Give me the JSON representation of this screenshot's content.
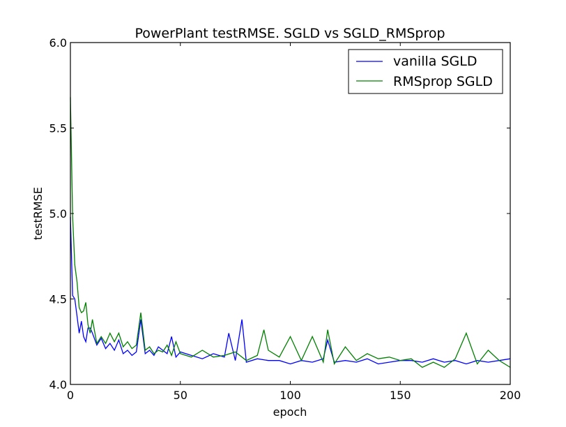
{
  "chart_data": {
    "type": "line",
    "title": "PowerPlant testRMSE. SGLD vs SGLD_RMSprop",
    "xlabel": "epoch",
    "ylabel": "testRMSE",
    "xlim": [
      0,
      200
    ],
    "ylim": [
      4.0,
      6.0
    ],
    "x_ticks": [
      0,
      50,
      100,
      150,
      200
    ],
    "x_tick_labels": [
      "0",
      "50",
      "100",
      "150",
      "200"
    ],
    "y_ticks": [
      4.0,
      4.5,
      5.0,
      5.5,
      6.0
    ],
    "y_tick_labels": [
      "4.0",
      "4.5",
      "5.0",
      "5.5",
      "6.0"
    ],
    "grid": false,
    "legend_position": "top-right",
    "series": [
      {
        "name": "vanilla SGLD",
        "color": "#0000ff",
        "x": [
          0,
          1,
          2,
          3,
          4,
          5,
          6,
          7,
          8,
          9,
          10,
          12,
          14,
          16,
          18,
          20,
          22,
          24,
          26,
          28,
          30,
          32,
          34,
          36,
          38,
          40,
          42,
          44,
          46,
          48,
          50,
          55,
          60,
          65,
          70,
          72,
          75,
          78,
          80,
          85,
          90,
          95,
          100,
          105,
          110,
          115,
          117,
          120,
          125,
          130,
          135,
          140,
          145,
          150,
          155,
          160,
          165,
          170,
          175,
          180,
          185,
          190,
          195,
          200
        ],
        "y": [
          4.98,
          4.52,
          4.5,
          4.4,
          4.3,
          4.37,
          4.28,
          4.25,
          4.33,
          4.33,
          4.3,
          4.23,
          4.27,
          4.21,
          4.24,
          4.2,
          4.26,
          4.18,
          4.2,
          4.17,
          4.19,
          4.38,
          4.18,
          4.2,
          4.17,
          4.22,
          4.2,
          4.18,
          4.28,
          4.16,
          4.19,
          4.17,
          4.15,
          4.18,
          4.16,
          4.3,
          4.14,
          4.38,
          4.13,
          4.15,
          4.14,
          4.14,
          4.12,
          4.14,
          4.13,
          4.15,
          4.26,
          4.13,
          4.14,
          4.13,
          4.15,
          4.12,
          4.13,
          4.14,
          4.14,
          4.13,
          4.15,
          4.13,
          4.14,
          4.12,
          4.14,
          4.13,
          4.14,
          4.15
        ]
      },
      {
        "name": "RMSprop SGLD",
        "color": "#008000",
        "x": [
          0,
          1,
          2,
          3,
          4,
          5,
          6,
          7,
          8,
          9,
          10,
          12,
          14,
          16,
          18,
          20,
          22,
          24,
          26,
          28,
          30,
          32,
          34,
          36,
          38,
          40,
          42,
          44,
          46,
          48,
          50,
          55,
          60,
          65,
          70,
          75,
          80,
          85,
          88,
          90,
          95,
          100,
          105,
          110,
          115,
          117,
          120,
          125,
          130,
          135,
          140,
          145,
          150,
          155,
          160,
          165,
          170,
          175,
          180,
          185,
          190,
          195,
          200
        ],
        "y": [
          5.68,
          4.98,
          4.7,
          4.6,
          4.45,
          4.42,
          4.43,
          4.48,
          4.35,
          4.3,
          4.38,
          4.24,
          4.28,
          4.24,
          4.3,
          4.25,
          4.3,
          4.22,
          4.25,
          4.21,
          4.23,
          4.42,
          4.2,
          4.22,
          4.18,
          4.2,
          4.19,
          4.23,
          4.17,
          4.25,
          4.18,
          4.16,
          4.2,
          4.16,
          4.17,
          4.19,
          4.14,
          4.17,
          4.32,
          4.2,
          4.16,
          4.28,
          4.14,
          4.28,
          4.13,
          4.32,
          4.12,
          4.22,
          4.14,
          4.18,
          4.15,
          4.16,
          4.14,
          4.15,
          4.1,
          4.13,
          4.1,
          4.15,
          4.3,
          4.12,
          4.2,
          4.14,
          4.1
        ]
      }
    ]
  }
}
